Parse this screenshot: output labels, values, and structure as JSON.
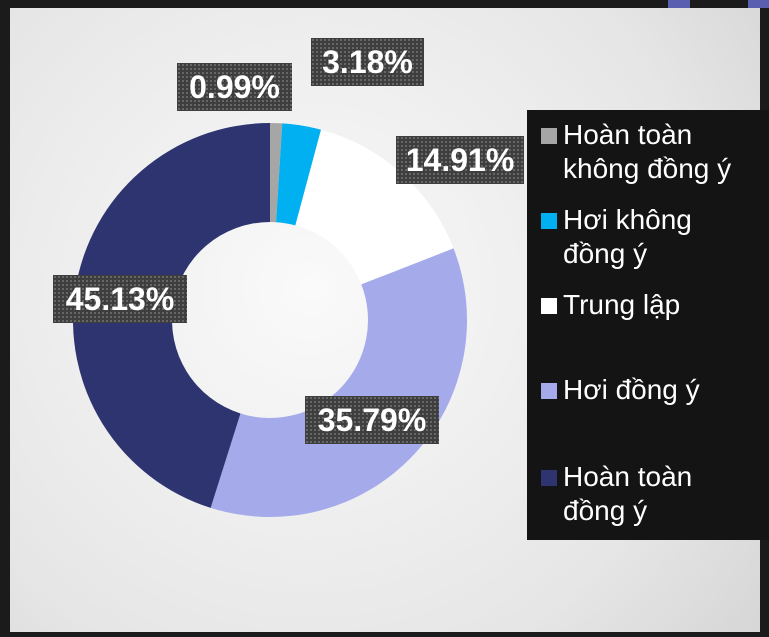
{
  "chart_data": {
    "type": "pie",
    "categories": [
      "Hoàn toàn không đồng ý",
      "Hơi không đồng ý",
      "Trung lập",
      "Hơi đồng ý",
      "Hoàn toàn đồng ý"
    ],
    "values": [
      0.99,
      3.18,
      14.91,
      35.79,
      45.13
    ],
    "value_labels": [
      "0.99%",
      "3.18%",
      "14.91%",
      "35.79%",
      "45.13%"
    ],
    "colors": [
      "#a6a6a6",
      "#00b0f0",
      "#ffffff",
      "#a5aaeb",
      "#2e3470"
    ]
  }
}
